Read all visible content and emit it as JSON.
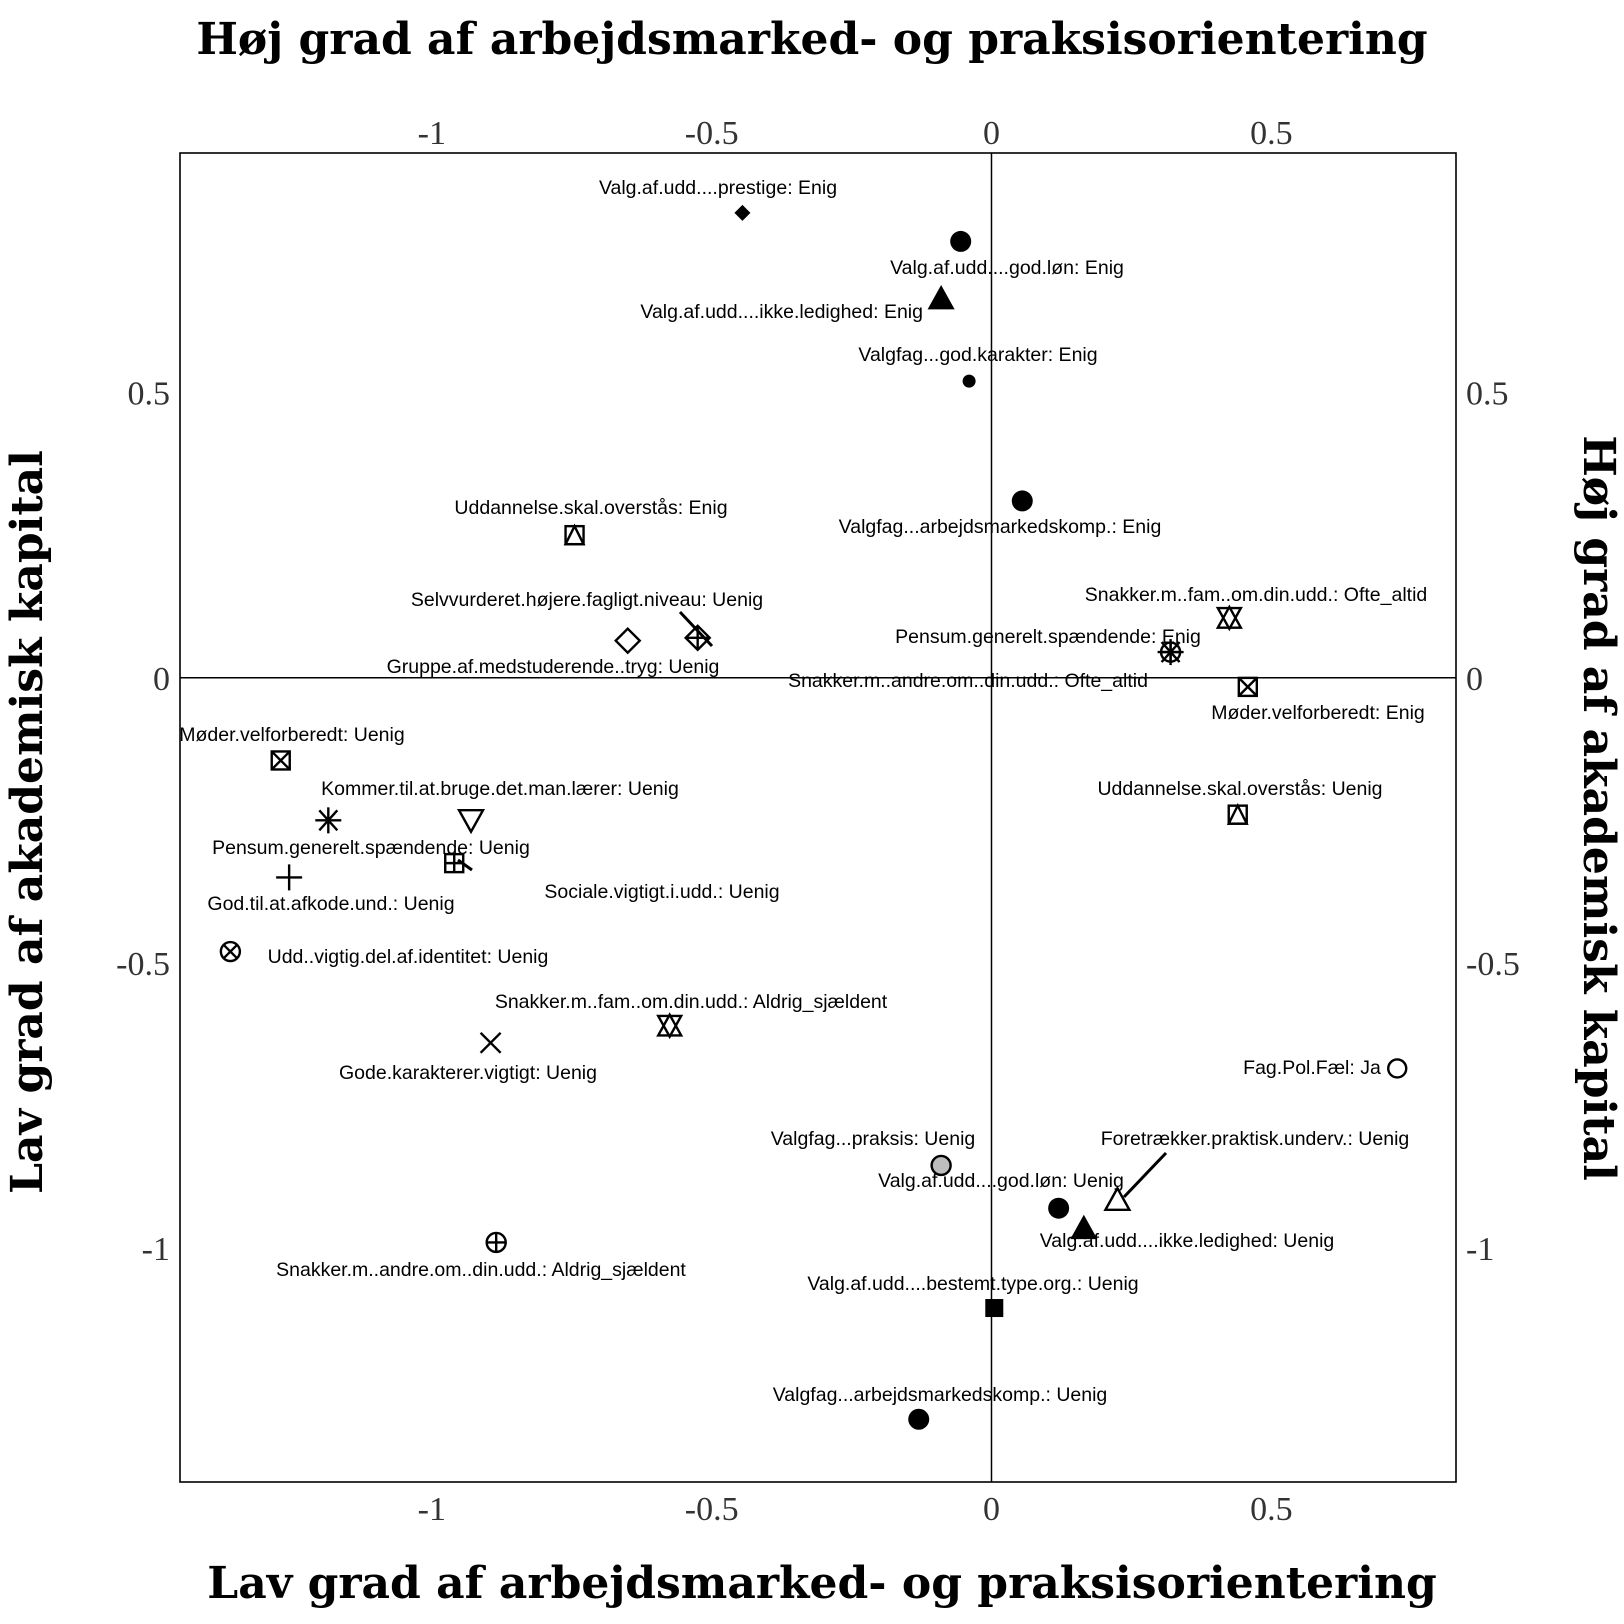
{
  "chart_data": {
    "type": "scatter",
    "axis_titles": {
      "top": "Høj grad af arbejdsmarked- og praksisorientering",
      "bottom": "Lav grad af arbejdsmarked- og praksisorientering",
      "left": "Lav grad af akademisk kapital",
      "right": "Høj grad af akademisk kapital"
    },
    "xlim": [
      -1.45,
      0.83
    ],
    "ylim": [
      -1.41,
      0.92
    ],
    "x_ticks": [
      {
        "v": -1,
        "label": "-1"
      },
      {
        "v": -0.5,
        "label": "-0.5"
      },
      {
        "v": 0,
        "label": "0"
      },
      {
        "v": 0.5,
        "label": "0.5"
      }
    ],
    "y_ticks": [
      {
        "v": 0.5,
        "label": "0.5"
      },
      {
        "v": 0,
        "label": "0"
      },
      {
        "v": -0.5,
        "label": "-0.5"
      },
      {
        "v": -1,
        "label": "-1"
      }
    ],
    "points": [
      {
        "label": "Valg.af.udd....prestige: Enig",
        "x": -0.445,
        "y": 0.815,
        "marker": "diamond-filled"
      },
      {
        "label": "Valg.af.udd....god.løn: Enig",
        "x": -0.055,
        "y": 0.765,
        "marker": "circle-filled"
      },
      {
        "label": "Valg.af.udd....ikke.ledighed: Enig",
        "x": -0.09,
        "y": 0.665,
        "marker": "triangle-filled"
      },
      {
        "label": "Valgfag...god.karakter: Enig",
        "x": -0.04,
        "y": 0.52,
        "marker": "circle-filled-small"
      },
      {
        "label": "Valgfag...arbejdsmarkedskomp.: Enig",
        "x": 0.055,
        "y": 0.31,
        "marker": "circle-filled"
      },
      {
        "label": "Uddannelse.skal.overstås: Enig",
        "x": -0.745,
        "y": 0.25,
        "marker": "square-triangle"
      },
      {
        "label": "Selvvurderet.højere.fagligt.niveau: Uenig",
        "x": -0.525,
        "y": 0.07,
        "marker": "diamond-plus"
      },
      {
        "label": "Gruppe.af.medstuderende..tryg: Uenig",
        "x": -0.65,
        "y": 0.065,
        "marker": "diamond-open"
      },
      {
        "label": "Snakker.m..fam..om.din.udd.: Ofte_altid",
        "x": 0.425,
        "y": 0.105,
        "marker": "star-of-david"
      },
      {
        "label": "Pensum.generelt.spændende: Enig",
        "x": 0.32,
        "y": 0.045,
        "marker": "asterisk"
      },
      {
        "label": "Snakker.m..andre.om..din.udd.: Ofte_altid",
        "x": 0.32,
        "y": 0.045,
        "marker": "circle-plus"
      },
      {
        "label": "Møder.velforberedt: Enig",
        "x": 0.458,
        "y": -0.016,
        "marker": "square-x"
      },
      {
        "label": "Møder.velforberedt: Uenig",
        "x": -1.27,
        "y": -0.145,
        "marker": "square-x"
      },
      {
        "label": "Kommer.til.at.bruge.det.man.lærer: Uenig",
        "x": -0.93,
        "y": -0.25,
        "marker": "triangle-down-open"
      },
      {
        "label": "Pensum.generelt.spændende: Uenig",
        "x": -1.185,
        "y": -0.25,
        "marker": "asterisk"
      },
      {
        "label": "Sociale.vigtigt.i.udd.: Uenig",
        "x": -0.96,
        "y": -0.325,
        "marker": "square-plus"
      },
      {
        "label": "God.til.at.afkode.und.: Uenig",
        "x": -1.255,
        "y": -0.35,
        "marker": "plus"
      },
      {
        "label": "Uddannelse.skal.overstås: Uenig",
        "x": 0.44,
        "y": -0.24,
        "marker": "square-triangle"
      },
      {
        "label": "Udd..vigtig.del.af.identitet: Uenig",
        "x": -1.36,
        "y": -0.48,
        "marker": "circle-x"
      },
      {
        "label": "Snakker.m..fam..om.din.udd.: Aldrig_sjældent",
        "x": -0.575,
        "y": -0.61,
        "marker": "star-of-david"
      },
      {
        "label": "Gode.karakterer.vigtigt: Uenig",
        "x": -0.895,
        "y": -0.64,
        "marker": "x"
      },
      {
        "label": "Fag.Pol.Fæl: Ja",
        "x": 0.725,
        "y": -0.685,
        "marker": "circle-open"
      },
      {
        "label": "Valgfag...praksis: Uenig",
        "x": -0.09,
        "y": -0.855,
        "marker": "circle-gray"
      },
      {
        "label": "Foretrækker.praktisk.underv.: Uenig",
        "x": 0.225,
        "y": -0.915,
        "marker": "triangle-open"
      },
      {
        "label": "Valg.af.udd....god.løn: Uenig",
        "x": 0.12,
        "y": -0.93,
        "marker": "circle-filled"
      },
      {
        "label": "Valg.af.udd....ikke.ledighed: Uenig",
        "x": 0.165,
        "y": -0.965,
        "marker": "triangle-filled"
      },
      {
        "label": "Snakker.m..andre.om..din.udd.: Aldrig_sjældent",
        "x": -0.885,
        "y": -0.99,
        "marker": "circle-plus"
      },
      {
        "label": "Valg.af.udd....bestemt.type.org.: Uenig",
        "x": 0.005,
        "y": -1.105,
        "marker": "square-filled"
      },
      {
        "label": "Valgfag...arbejdsmarkedskomp.: Uenig",
        "x": -0.13,
        "y": -1.3,
        "marker": "circle-filled"
      }
    ]
  }
}
